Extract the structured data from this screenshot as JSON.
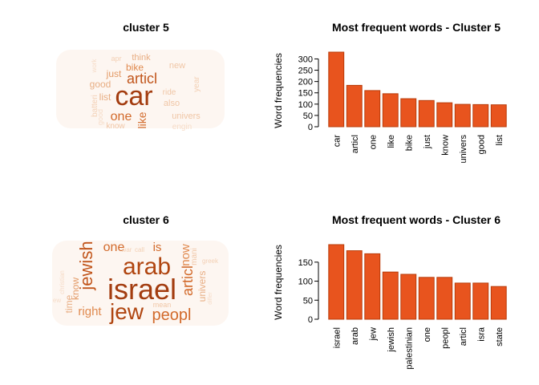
{
  "chart_data": [
    {
      "type": "wordcloud",
      "title": "cluster 5",
      "words": [
        {
          "text": "car",
          "weight": 1.0,
          "color": "#a33c0f"
        },
        {
          "text": "articl",
          "weight": 0.55,
          "color": "#c1551b"
        },
        {
          "text": "one",
          "weight": 0.5,
          "color": "#d26a2b"
        },
        {
          "text": "like",
          "weight": 0.46,
          "color": "#d26a2b"
        },
        {
          "text": "bike",
          "weight": 0.38,
          "color": "#e08a4f"
        },
        {
          "text": "just",
          "weight": 0.36,
          "color": "#e39a66"
        },
        {
          "text": "know",
          "weight": 0.33,
          "color": "#f0c6a6"
        },
        {
          "text": "univers",
          "weight": 0.3,
          "color": "#f0c6a6"
        },
        {
          "text": "good",
          "weight": 0.3,
          "color": "#e8ae84"
        },
        {
          "text": "list",
          "weight": 0.3,
          "color": "#e8ae84"
        },
        {
          "text": "think",
          "weight": 0.28,
          "color": "#e8ae84"
        },
        {
          "text": "new",
          "weight": 0.28,
          "color": "#f0c6a6"
        },
        {
          "text": "also",
          "weight": 0.26,
          "color": "#f0c6a6"
        },
        {
          "text": "ride",
          "weight": 0.24,
          "color": "#f0c6a6"
        },
        {
          "text": "year",
          "weight": 0.22,
          "color": "#f3d0b5"
        },
        {
          "text": "apr",
          "weight": 0.22,
          "color": "#f3d0b5"
        },
        {
          "text": "batteri",
          "weight": 0.22,
          "color": "#f3d0b5"
        },
        {
          "text": "work",
          "weight": 0.2,
          "color": "#f6dcc8"
        },
        {
          "text": "engin",
          "weight": 0.22,
          "color": "#f6dcc8"
        },
        {
          "text": "good",
          "weight": 0.22,
          "color": "#f6dcc8"
        }
      ]
    },
    {
      "type": "bar",
      "title": "Most frequent words - Cluster  5",
      "ylabel": "Word frequencies",
      "categories": [
        "car",
        "articl",
        "one",
        "like",
        "bike",
        "just",
        "know",
        "univers",
        "good",
        "list"
      ],
      "values": [
        330,
        183,
        160,
        146,
        124,
        116,
        106,
        99,
        98,
        97
      ],
      "yticks": [
        0,
        50,
        100,
        150,
        200,
        250,
        300
      ],
      "ylim": [
        0,
        330
      ],
      "bar_color": "#e8541e",
      "bar_border": "#b83c0a"
    },
    {
      "type": "wordcloud",
      "title": "cluster 6",
      "words": [
        {
          "text": "israel",
          "weight": 1.0,
          "color": "#a33c0f"
        },
        {
          "text": "arab",
          "weight": 0.9,
          "color": "#b04510"
        },
        {
          "text": "jew",
          "weight": 0.85,
          "color": "#b04510"
        },
        {
          "text": "jewish",
          "weight": 0.62,
          "color": "#c1551b"
        },
        {
          "text": "articl",
          "weight": 0.55,
          "color": "#d26a2b"
        },
        {
          "text": "peopl",
          "weight": 0.55,
          "color": "#d26a2b"
        },
        {
          "text": "one",
          "weight": 0.5,
          "color": "#d26a2b"
        },
        {
          "text": "right",
          "weight": 0.42,
          "color": "#e08a4f"
        },
        {
          "text": "now",
          "weight": 0.42,
          "color": "#e08a4f"
        },
        {
          "text": "know",
          "weight": 0.4,
          "color": "#e39a66"
        },
        {
          "text": "univers",
          "weight": 0.38,
          "color": "#e8ae84"
        },
        {
          "text": "is",
          "weight": 0.45,
          "color": "#d26a2b"
        },
        {
          "text": "time",
          "weight": 0.3,
          "color": "#e8ae84"
        },
        {
          "text": "mani",
          "weight": 0.26,
          "color": "#f0c6a6"
        },
        {
          "text": "mean",
          "weight": 0.24,
          "color": "#f0c6a6"
        },
        {
          "text": "greek",
          "weight": 0.2,
          "color": "#f3d0b5"
        },
        {
          "text": "war",
          "weight": 0.2,
          "color": "#f3d0b5"
        },
        {
          "text": "call",
          "weight": 0.2,
          "color": "#f3d0b5"
        },
        {
          "text": "christian",
          "weight": 0.2,
          "color": "#f6dcc8"
        },
        {
          "text": "ew",
          "weight": 0.2,
          "color": "#f6dcc8"
        },
        {
          "text": "differ",
          "weight": 0.18,
          "color": "#f6dcc8"
        }
      ]
    },
    {
      "type": "bar",
      "title": "Most frequent words - Cluster  6",
      "ylabel": "Word frequencies",
      "categories": [
        "israel",
        "arab",
        "jew",
        "jewish",
        "palestinian",
        "one",
        "peopl",
        "articl",
        "isra",
        "state"
      ],
      "values": [
        196,
        180,
        172,
        124,
        118,
        110,
        110,
        95,
        95,
        86
      ],
      "yticks": [
        0,
        50,
        100,
        150
      ],
      "ylim": [
        0,
        196
      ],
      "bar_color": "#e8541e",
      "bar_border": "#b83c0a"
    }
  ]
}
